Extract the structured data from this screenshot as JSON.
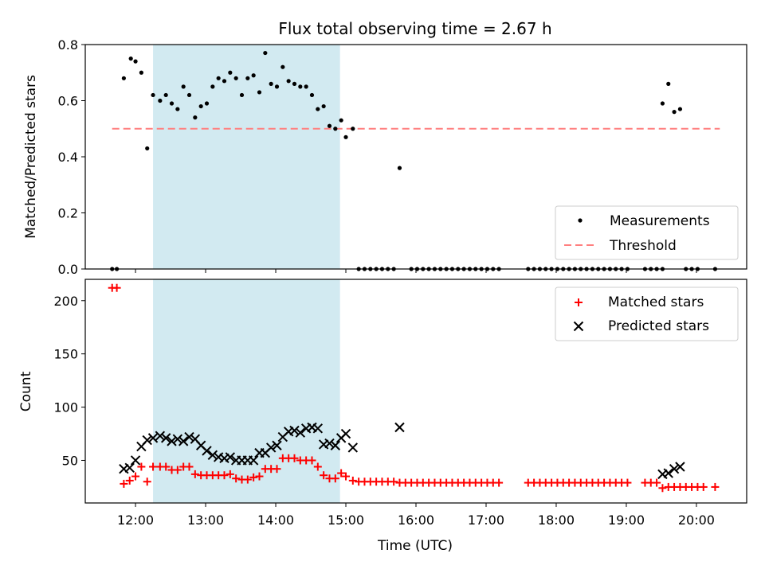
{
  "colors": {
    "measurement": "#000000",
    "threshold": "#ff7f7f",
    "matched": "#ff0000",
    "predicted": "#000000",
    "span": "#add8e6"
  },
  "chart_data": [
    {
      "type": "scatter",
      "title": "Flux total observing time = 2.67 h",
      "xlabel": "",
      "ylabel": "Matched/Predicted stars",
      "xlim": [
        "11:17",
        "20:43"
      ],
      "ylim": [
        0,
        0.8
      ],
      "yticks": [
        0.0,
        0.2,
        0.4,
        0.6,
        0.8
      ],
      "ytick_labels": [
        "0.0",
        "0.2",
        "0.4",
        "0.6",
        "0.8"
      ],
      "legend_position": "lower right",
      "legend": [
        "Measurements",
        "Threshold"
      ],
      "shaded_interval": [
        "12:15",
        "14:55"
      ],
      "threshold": {
        "name": "Threshold",
        "value": 0.5,
        "x_range": [
          "11:40",
          "20:20"
        ]
      },
      "series": [
        {
          "name": "Measurements",
          "marker": "dot",
          "points": [
            [
              "11:40",
              0
            ],
            [
              "11:44",
              0
            ],
            [
              "11:50",
              0.68
            ],
            [
              "11:56",
              0.75
            ],
            [
              "12:00",
              0.74
            ],
            [
              "12:05",
              0.7
            ],
            [
              "12:10",
              0.43
            ],
            [
              "12:15",
              0.62
            ],
            [
              "12:21",
              0.6
            ],
            [
              "12:26",
              0.62
            ],
            [
              "12:31",
              0.59
            ],
            [
              "12:36",
              0.57
            ],
            [
              "12:41",
              0.65
            ],
            [
              "12:46",
              0.62
            ],
            [
              "12:51",
              0.54
            ],
            [
              "12:56",
              0.58
            ],
            [
              "13:01",
              0.59
            ],
            [
              "13:06",
              0.65
            ],
            [
              "13:11",
              0.68
            ],
            [
              "13:16",
              0.67
            ],
            [
              "13:21",
              0.7
            ],
            [
              "13:26",
              0.68
            ],
            [
              "13:31",
              0.62
            ],
            [
              "13:36",
              0.68
            ],
            [
              "13:41",
              0.69
            ],
            [
              "13:46",
              0.63
            ],
            [
              "13:51",
              0.77
            ],
            [
              "13:56",
              0.66
            ],
            [
              "14:01",
              0.65
            ],
            [
              "14:06",
              0.72
            ],
            [
              "14:11",
              0.67
            ],
            [
              "14:16",
              0.66
            ],
            [
              "14:21",
              0.65
            ],
            [
              "14:26",
              0.65
            ],
            [
              "14:31",
              0.62
            ],
            [
              "14:36",
              0.57
            ],
            [
              "14:41",
              0.58
            ],
            [
              "14:46",
              0.51
            ],
            [
              "14:51",
              0.5
            ],
            [
              "14:56",
              0.53
            ],
            [
              "15:00",
              0.47
            ],
            [
              "15:06",
              0.5
            ],
            [
              "15:11",
              0
            ],
            [
              "15:16",
              0
            ],
            [
              "15:21",
              0
            ],
            [
              "15:26",
              0
            ],
            [
              "15:31",
              0
            ],
            [
              "15:36",
              0
            ],
            [
              "15:41",
              0
            ],
            [
              "15:46",
              0.36
            ],
            [
              "15:56",
              0
            ],
            [
              "16:01",
              0
            ],
            [
              "16:06",
              0
            ],
            [
              "16:11",
              0
            ],
            [
              "16:16",
              0
            ],
            [
              "16:21",
              0
            ],
            [
              "16:26",
              0
            ],
            [
              "16:31",
              0
            ],
            [
              "16:36",
              0
            ],
            [
              "16:41",
              0
            ],
            [
              "16:46",
              0
            ],
            [
              "16:51",
              0
            ],
            [
              "16:56",
              0
            ],
            [
              "17:01",
              0
            ],
            [
              "17:06",
              0
            ],
            [
              "17:11",
              0
            ],
            [
              "17:36",
              0
            ],
            [
              "17:41",
              0
            ],
            [
              "17:46",
              0
            ],
            [
              "17:51",
              0
            ],
            [
              "17:56",
              0
            ],
            [
              "18:01",
              0
            ],
            [
              "18:06",
              0
            ],
            [
              "18:11",
              0
            ],
            [
              "18:16",
              0
            ],
            [
              "18:21",
              0
            ],
            [
              "18:26",
              0
            ],
            [
              "18:31",
              0
            ],
            [
              "18:36",
              0
            ],
            [
              "18:41",
              0
            ],
            [
              "18:46",
              0
            ],
            [
              "18:51",
              0
            ],
            [
              "18:56",
              0
            ],
            [
              "19:01",
              0
            ],
            [
              "19:16",
              0
            ],
            [
              "19:21",
              0
            ],
            [
              "19:26",
              0
            ],
            [
              "19:31",
              0
            ],
            [
              "19:31",
              0.59
            ],
            [
              "19:36",
              0.66
            ],
            [
              "19:41",
              0.56
            ],
            [
              "19:46",
              0.57
            ],
            [
              "19:51",
              0
            ],
            [
              "19:56",
              0
            ],
            [
              "20:01",
              0
            ],
            [
              "20:16",
              0
            ]
          ]
        }
      ]
    },
    {
      "type": "scatter",
      "title": "",
      "xlabel": "Time (UTC)",
      "ylabel": "Count",
      "xlim": [
        "11:17",
        "20:43"
      ],
      "ylim": [
        10,
        220
      ],
      "yticks": [
        50,
        100,
        150,
        200
      ],
      "ytick_labels": [
        "50",
        "100",
        "150",
        "200"
      ],
      "xticks": [
        "12:00",
        "13:00",
        "14:00",
        "15:00",
        "16:00",
        "17:00",
        "18:00",
        "19:00",
        "20:00"
      ],
      "xtick_labels": [
        "12:00",
        "13:00",
        "14:00",
        "15:00",
        "16:00",
        "17:00",
        "18:00",
        "19:00",
        "20:00"
      ],
      "legend_position": "upper right",
      "legend": [
        "Matched stars",
        "Predicted stars"
      ],
      "shaded_interval": [
        "12:15",
        "14:55"
      ],
      "series": [
        {
          "name": "Matched stars",
          "marker": "plus",
          "points": [
            [
              "11:40",
              212
            ],
            [
              "11:44",
              212
            ],
            [
              "11:50",
              28
            ],
            [
              "11:55",
              31
            ],
            [
              "12:00",
              35
            ],
            [
              "12:05",
              44
            ],
            [
              "12:10",
              30
            ],
            [
              "12:15",
              44
            ],
            [
              "12:21",
              44
            ],
            [
              "12:26",
              44
            ],
            [
              "12:31",
              41
            ],
            [
              "12:36",
              41
            ],
            [
              "12:41",
              44
            ],
            [
              "12:46",
              44
            ],
            [
              "12:51",
              37
            ],
            [
              "12:56",
              36
            ],
            [
              "13:01",
              36
            ],
            [
              "13:06",
              36
            ],
            [
              "13:11",
              36
            ],
            [
              "13:16",
              36
            ],
            [
              "13:21",
              37
            ],
            [
              "13:26",
              33
            ],
            [
              "13:31",
              32
            ],
            [
              "13:36",
              32
            ],
            [
              "13:41",
              34
            ],
            [
              "13:46",
              35
            ],
            [
              "13:51",
              42
            ],
            [
              "13:56",
              42
            ],
            [
              "14:01",
              42
            ],
            [
              "14:06",
              52
            ],
            [
              "14:11",
              52
            ],
            [
              "14:16",
              52
            ],
            [
              "14:21",
              50
            ],
            [
              "14:26",
              50
            ],
            [
              "14:31",
              50
            ],
            [
              "14:36",
              44
            ],
            [
              "14:41",
              36
            ],
            [
              "14:46",
              33
            ],
            [
              "14:51",
              33
            ],
            [
              "14:56",
              38
            ],
            [
              "15:00",
              35
            ],
            [
              "15:06",
              31
            ],
            [
              "15:11",
              30
            ],
            [
              "15:16",
              30
            ],
            [
              "15:21",
              30
            ],
            [
              "15:26",
              30
            ],
            [
              "15:31",
              30
            ],
            [
              "15:36",
              30
            ],
            [
              "15:41",
              30
            ],
            [
              "15:46",
              29
            ],
            [
              "15:51",
              29
            ],
            [
              "15:56",
              29
            ],
            [
              "16:01",
              29
            ],
            [
              "16:06",
              29
            ],
            [
              "16:11",
              29
            ],
            [
              "16:16",
              29
            ],
            [
              "16:21",
              29
            ],
            [
              "16:26",
              29
            ],
            [
              "16:31",
              29
            ],
            [
              "16:36",
              29
            ],
            [
              "16:41",
              29
            ],
            [
              "16:46",
              29
            ],
            [
              "16:51",
              29
            ],
            [
              "16:56",
              29
            ],
            [
              "17:01",
              29
            ],
            [
              "17:06",
              29
            ],
            [
              "17:11",
              29
            ],
            [
              "17:36",
              29
            ],
            [
              "17:41",
              29
            ],
            [
              "17:46",
              29
            ],
            [
              "17:51",
              29
            ],
            [
              "17:56",
              29
            ],
            [
              "18:01",
              29
            ],
            [
              "18:06",
              29
            ],
            [
              "18:11",
              29
            ],
            [
              "18:16",
              29
            ],
            [
              "18:21",
              29
            ],
            [
              "18:26",
              29
            ],
            [
              "18:31",
              29
            ],
            [
              "18:36",
              29
            ],
            [
              "18:41",
              29
            ],
            [
              "18:46",
              29
            ],
            [
              "18:51",
              29
            ],
            [
              "18:56",
              29
            ],
            [
              "19:01",
              29
            ],
            [
              "19:16",
              29
            ],
            [
              "19:21",
              29
            ],
            [
              "19:26",
              29
            ],
            [
              "19:31",
              24
            ],
            [
              "19:36",
              25
            ],
            [
              "19:41",
              25
            ],
            [
              "19:46",
              25
            ],
            [
              "19:51",
              25
            ],
            [
              "19:56",
              25
            ],
            [
              "20:01",
              25
            ],
            [
              "20:06",
              25
            ],
            [
              "20:16",
              25
            ]
          ]
        },
        {
          "name": "Predicted stars",
          "marker": "x",
          "points": [
            [
              "11:50",
              42
            ],
            [
              "11:55",
              43
            ],
            [
              "12:00",
              50
            ],
            [
              "12:05",
              63
            ],
            [
              "12:10",
              69
            ],
            [
              "12:15",
              71
            ],
            [
              "12:21",
              73
            ],
            [
              "12:26",
              71
            ],
            [
              "12:31",
              68
            ],
            [
              "12:36",
              70
            ],
            [
              "12:41",
              68
            ],
            [
              "12:46",
              72
            ],
            [
              "12:51",
              70
            ],
            [
              "12:56",
              64
            ],
            [
              "13:01",
              59
            ],
            [
              "13:06",
              55
            ],
            [
              "13:11",
              53
            ],
            [
              "13:16",
              52
            ],
            [
              "13:21",
              53
            ],
            [
              "13:26",
              50
            ],
            [
              "13:31",
              50
            ],
            [
              "13:36",
              50
            ],
            [
              "13:41",
              50
            ],
            [
              "13:46",
              57
            ],
            [
              "13:51",
              57
            ],
            [
              "13:56",
              62
            ],
            [
              "14:01",
              64
            ],
            [
              "14:06",
              72
            ],
            [
              "14:11",
              77
            ],
            [
              "14:16",
              78
            ],
            [
              "14:21",
              76
            ],
            [
              "14:26",
              80
            ],
            [
              "14:31",
              81
            ],
            [
              "14:36",
              80
            ],
            [
              "14:41",
              65
            ],
            [
              "14:46",
              66
            ],
            [
              "14:51",
              64
            ],
            [
              "14:56",
              71
            ],
            [
              "15:00",
              75
            ],
            [
              "15:06",
              62
            ],
            [
              "15:46",
              81
            ],
            [
              "19:31",
              37
            ],
            [
              "19:36",
              38
            ],
            [
              "19:41",
              42
            ],
            [
              "19:46",
              44
            ]
          ]
        }
      ]
    }
  ]
}
